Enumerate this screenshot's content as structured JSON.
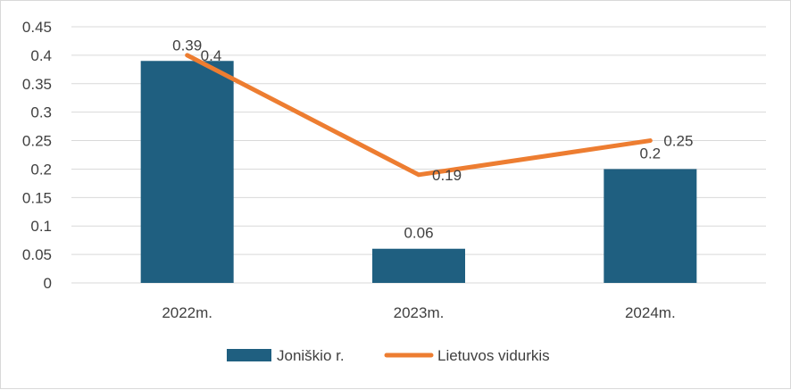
{
  "chart_data": {
    "type": "bar",
    "categories": [
      "2022m.",
      "2023m.",
      "2024m."
    ],
    "series": [
      {
        "name": "Joniškio r.",
        "type": "bar",
        "values": [
          0.39,
          0.06,
          0.2
        ],
        "color": "#1f5f80"
      },
      {
        "name": "Lietuvos vidurkis",
        "type": "line",
        "values": [
          0.4,
          0.19,
          0.25
        ],
        "color": "#ed7d31"
      }
    ],
    "bar_labels": [
      "0.39",
      "0.06",
      "0.2"
    ],
    "line_labels": [
      "0.4",
      "0.19",
      "0.25"
    ],
    "y_ticks": [
      "0",
      "0.05",
      "0.1",
      "0.15",
      "0.2",
      "0.25",
      "0.3",
      "0.35",
      "0.4",
      "0.45"
    ],
    "ylim": [
      0,
      0.45
    ],
    "grid": true,
    "legend_position": "bottom",
    "title": "",
    "xlabel": "",
    "ylabel": ""
  }
}
